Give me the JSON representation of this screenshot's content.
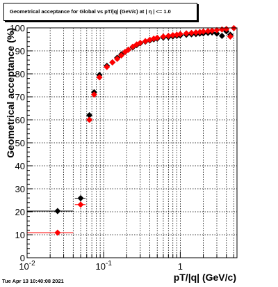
{
  "title": "Geometrical acceptance for Global vs pT/|q| (GeV/c) at |  η  | <= 1.0",
  "datestamp": "Tue Apr 13 10:40:08 2021",
  "chart_data": {
    "type": "scatter",
    "xlabel": "pT/|q| (GeV/c)",
    "ylabel": "Geometrical acceptance (%)",
    "x_scale": "log",
    "xlim": [
      0.01,
      5.5
    ],
    "ylim": [
      0,
      100
    ],
    "x_ticks": [
      {
        "value": 0.01,
        "label": "10",
        "exp": "-2"
      },
      {
        "value": 0.1,
        "label": "10",
        "exp": "-1"
      },
      {
        "value": 1,
        "label": "1",
        "exp": ""
      }
    ],
    "y_ticks": [
      0,
      10,
      20,
      30,
      40,
      50,
      60,
      70,
      80,
      90,
      100
    ],
    "grid": true,
    "colors": {
      "series_black": "#000000",
      "series_red": "#ff0000"
    },
    "series": [
      {
        "color": "#000000",
        "x": [
          0.025,
          0.05,
          0.065,
          0.075,
          0.088,
          0.11,
          0.13,
          0.15,
          0.17,
          0.19,
          0.21,
          0.24,
          0.27,
          0.3,
          0.35,
          0.4,
          0.45,
          0.5,
          0.6,
          0.7,
          0.8,
          0.9,
          1.0,
          1.2,
          1.4,
          1.6,
          1.8,
          2.0,
          2.3,
          2.6,
          3.0,
          3.5,
          4.0,
          4.5
        ],
        "y": [
          20.3,
          25.9,
          62.0,
          72.0,
          79.5,
          83.5,
          85.0,
          87.0,
          88.5,
          89.5,
          90.5,
          91.5,
          92.5,
          93.3,
          94.0,
          94.5,
          95.0,
          95.3,
          95.8,
          96.0,
          96.3,
          96.5,
          96.7,
          97.0,
          97.2,
          97.3,
          97.5,
          97.6,
          97.8,
          98.0,
          97.5,
          96.5,
          98.5,
          97.0
        ],
        "xerr": [
          0.015,
          0.008,
          0.004,
          0.004,
          0.006,
          0.01,
          0.01,
          0.01,
          0.01,
          0.01,
          0.01,
          0.015,
          0.015,
          0.015,
          0.025,
          0.025,
          0.025,
          0.025,
          0.05,
          0.05,
          0.05,
          0.05,
          0.05,
          0.1,
          0.1,
          0.1,
          0.1,
          0.1,
          0.15,
          0.15,
          0.2,
          0.25,
          0.25,
          0.25
        ]
      },
      {
        "color": "#ff0000",
        "x": [
          0.025,
          0.05,
          0.065,
          0.075,
          0.088,
          0.11,
          0.13,
          0.15,
          0.17,
          0.19,
          0.21,
          0.24,
          0.27,
          0.3,
          0.35,
          0.4,
          0.45,
          0.5,
          0.6,
          0.7,
          0.8,
          0.9,
          1.0,
          1.2,
          1.4,
          1.6,
          1.8,
          2.0,
          2.3,
          2.6,
          3.0,
          3.5,
          4.0,
          4.5,
          5.0
        ],
        "y": [
          10.9,
          23.1,
          60.0,
          71.0,
          78.5,
          83.0,
          85.0,
          86.5,
          88.0,
          89.5,
          90.5,
          91.8,
          92.8,
          93.5,
          94.2,
          94.8,
          95.3,
          95.7,
          96.2,
          96.5,
          96.8,
          97.0,
          97.3,
          97.6,
          97.8,
          98.0,
          98.2,
          98.4,
          98.6,
          98.8,
          99.0,
          99.3,
          99.5,
          96.2,
          99.9
        ],
        "xerr": [
          0.015,
          0.008,
          0.004,
          0.004,
          0.006,
          0.01,
          0.01,
          0.01,
          0.01,
          0.01,
          0.01,
          0.015,
          0.015,
          0.015,
          0.025,
          0.025,
          0.025,
          0.025,
          0.05,
          0.05,
          0.05,
          0.05,
          0.05,
          0.1,
          0.1,
          0.1,
          0.1,
          0.1,
          0.15,
          0.15,
          0.2,
          0.25,
          0.25,
          0.25,
          0.25
        ]
      }
    ]
  }
}
